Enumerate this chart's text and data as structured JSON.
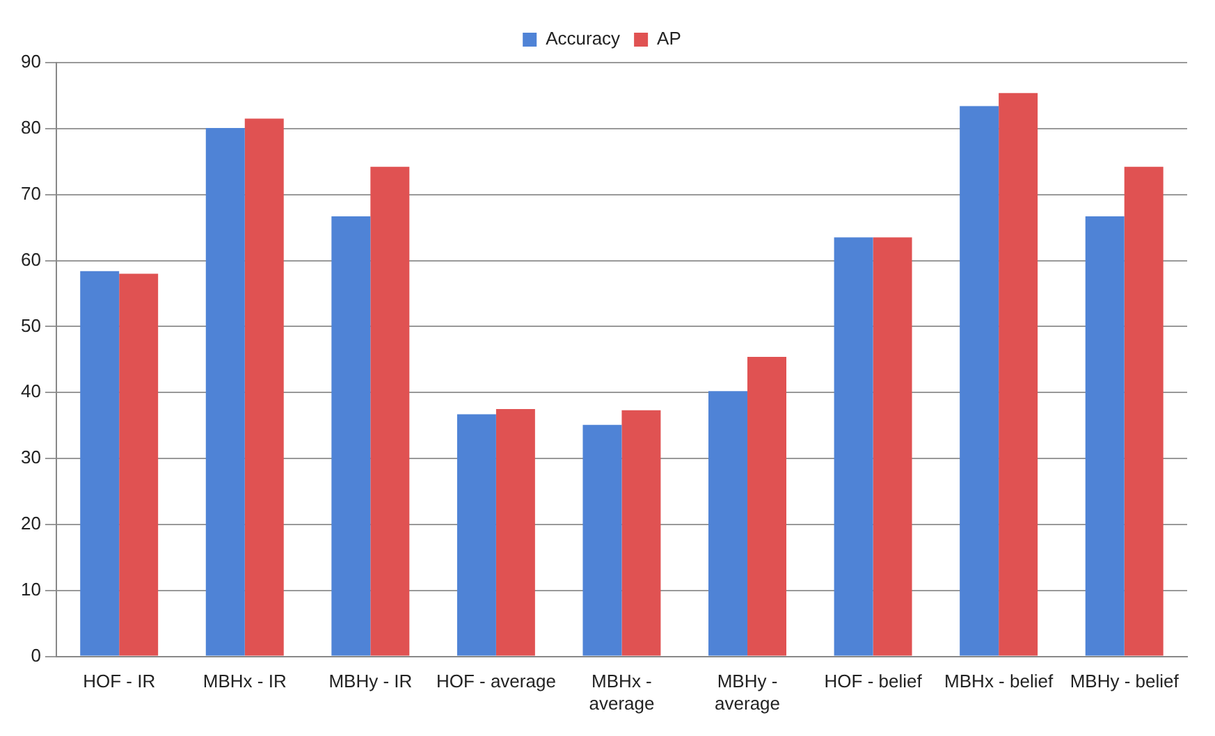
{
  "chart_data": {
    "type": "bar",
    "categories": [
      "HOF - IR",
      "MBHx - IR",
      "MBHy - IR",
      "HOF - average",
      "MBHx - average",
      "MBHy - average",
      "HOF - belief",
      "MBHx - belief",
      "MBHy - belief"
    ],
    "series": [
      {
        "name": "Accuracy",
        "color": "#4f83d6",
        "values": [
          58.4,
          80.1,
          66.7,
          36.7,
          35.1,
          40.2,
          63.5,
          83.4,
          66.7
        ]
      },
      {
        "name": "AP",
        "color": "#e05252",
        "values": [
          58.0,
          81.5,
          74.2,
          37.5,
          37.3,
          45.4,
          63.5,
          85.4,
          74.2
        ]
      }
    ],
    "ylim": [
      0,
      90
    ],
    "yticks": [
      0,
      10,
      20,
      30,
      40,
      50,
      60,
      70,
      80,
      90
    ],
    "grid": "y",
    "legend": "top"
  }
}
